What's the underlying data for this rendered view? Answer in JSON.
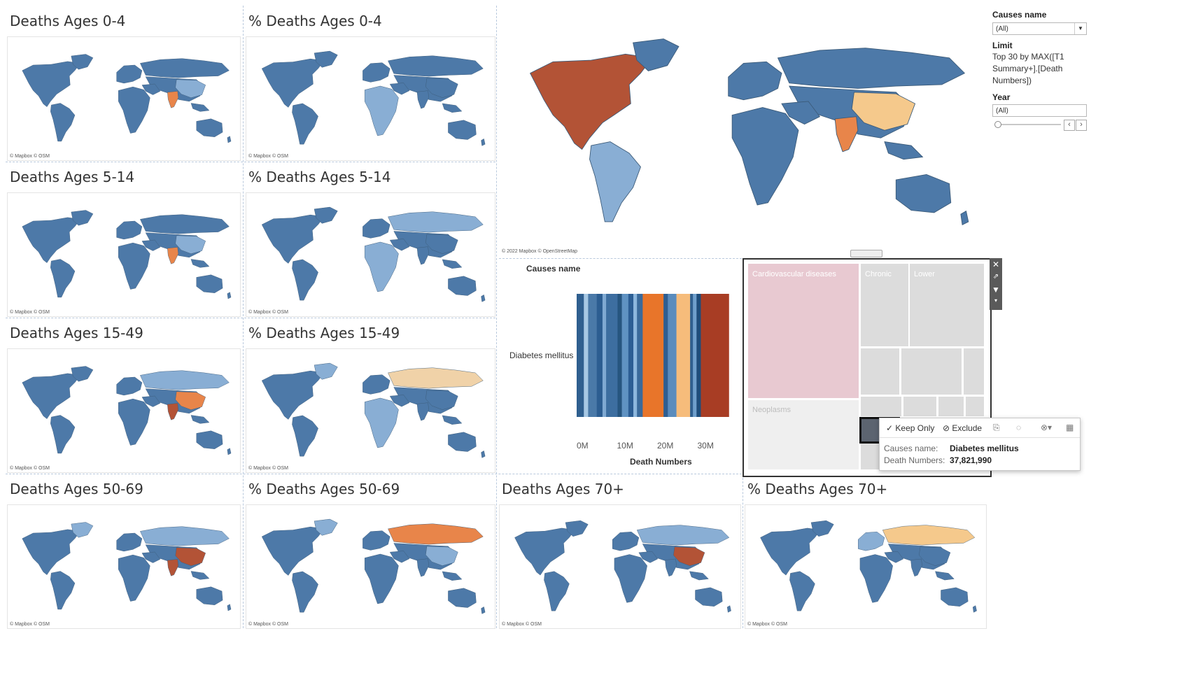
{
  "maps": [
    {
      "id": "m1",
      "title": "Deaths Ages 0-4",
      "credit": "© Mapbox © OSM"
    },
    {
      "id": "m2",
      "title": "% Deaths Ages 0-4",
      "credit": "© Mapbox © OSM"
    },
    {
      "id": "m3",
      "title": "Deaths Ages 5-14",
      "credit": "© Mapbox © OSM"
    },
    {
      "id": "m4",
      "title": "% Deaths Ages 5-14",
      "credit": "© Mapbox © OSM"
    },
    {
      "id": "m5",
      "title": "Deaths Ages 15-49",
      "credit": "© Mapbox © OSM"
    },
    {
      "id": "m6",
      "title": "% Deaths Ages 15-49",
      "credit": "© Mapbox © OSM"
    },
    {
      "id": "m7",
      "title": "Deaths Ages 50-69",
      "credit": "© Mapbox © OSM"
    },
    {
      "id": "m8",
      "title": "% Deaths Ages 50-69",
      "credit": "© Mapbox © OSM"
    },
    {
      "id": "m9",
      "title": "Deaths Ages 70+",
      "credit": "© Mapbox © OSM"
    },
    {
      "id": "m10",
      "title": "% Deaths Ages 70+",
      "credit": "© Mapbox © OSM"
    }
  ],
  "main_map": {
    "credit": "© 2022 Mapbox © OpenStreetMap"
  },
  "filters": {
    "causes_label": "Causes name",
    "causes_value": "(All)",
    "limit_label": "Limit",
    "limit_text_1": "Top 30 by MAX([T1",
    "limit_text_2": "Summary+].[Death",
    "limit_text_3": "Numbers])",
    "year_label": "Year",
    "year_value": "(All)",
    "prev": "‹",
    "next": "›"
  },
  "chart_data": {
    "type": "bar",
    "title": "",
    "ylabel": "Causes name",
    "xlabel": "Death Numbers",
    "categories": [
      "Diabetes mellitus"
    ],
    "x_ticks": [
      "0M",
      "10M",
      "20M",
      "30M"
    ],
    "xlim": [
      0,
      40000000
    ],
    "values": [
      37821990
    ],
    "segment_colors": [
      "#2f5f8f",
      "#a7c8e4",
      "#4a79a8",
      "#2c5d91",
      "#7fa9d2",
      "#3d6ea0",
      "#26557f",
      "#5f92c2",
      "#2c5e94",
      "#8db7dd",
      "#3a6a9b",
      "#e8752a",
      "#2e5e91",
      "#5a8cbd",
      "#f6bc7b",
      "#2f5f8f",
      "#6f9fcc",
      "#1e4d7b",
      "#a83d24"
    ]
  },
  "treemap": {
    "cells": [
      "Cardiovascular diseases",
      "Chronic",
      "Lower",
      "Neoplasms"
    ]
  },
  "tooltip": {
    "keep_only": "Keep Only",
    "exclude": "Exclude",
    "key1": "Causes name:",
    "val1": "Diabetes mellitus",
    "key2": "Death Numbers:",
    "val2": "37,821,990"
  },
  "colors": {
    "blue": "#4d79a8",
    "light_blue": "#89aed4",
    "orange": "#e8854a",
    "light_orange": "#f5c98c",
    "brown": "#b35336",
    "tan": "#f0d2a8"
  }
}
